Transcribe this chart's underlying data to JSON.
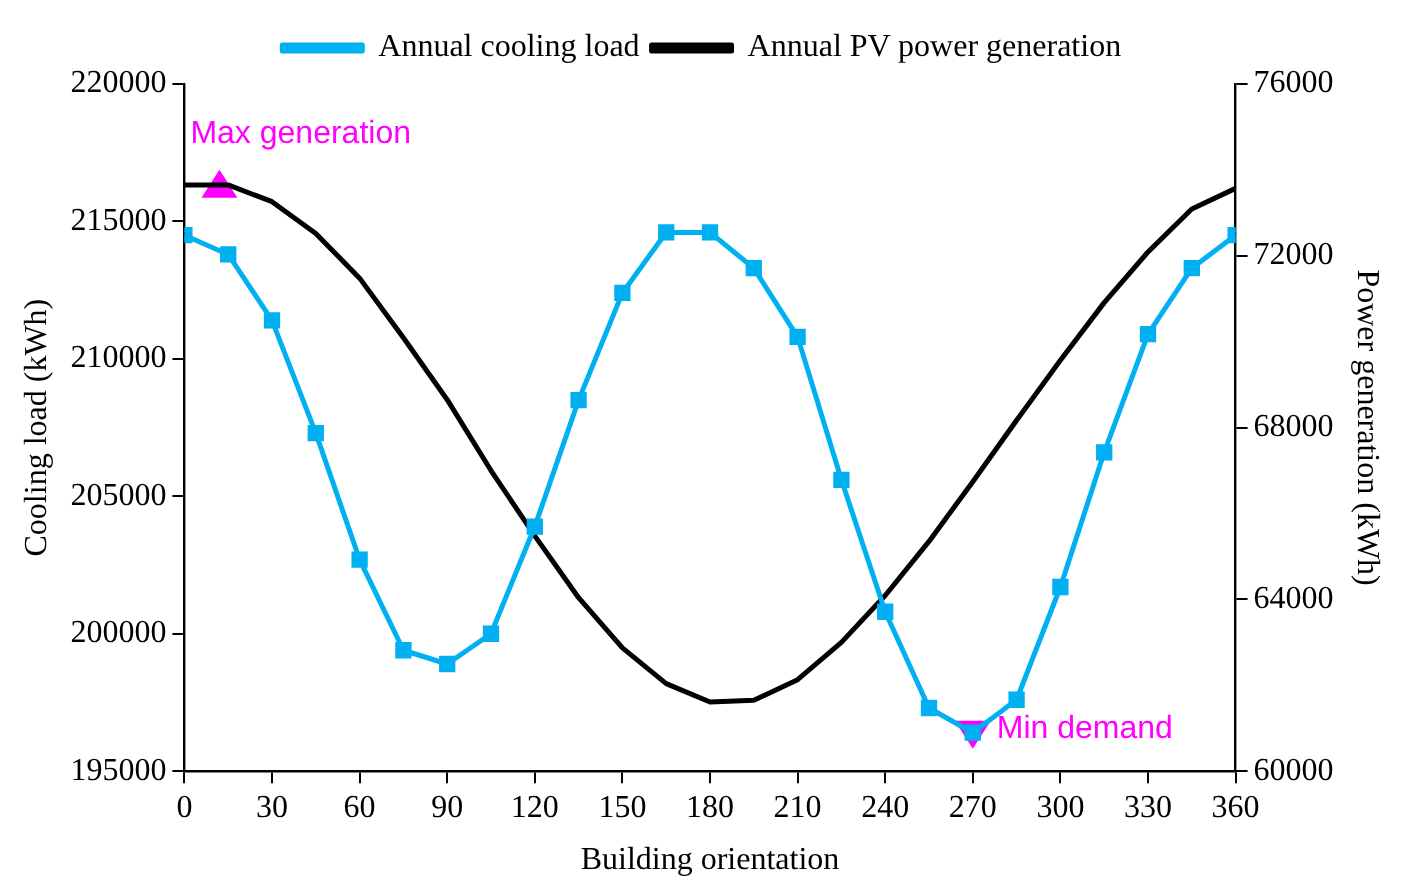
{
  "chart_data": {
    "type": "line",
    "xlabel": "Building orientation",
    "ylabel": "Cooling load (kWh)",
    "y2label": "Power generation (kWh)",
    "x": [
      0,
      15,
      30,
      45,
      60,
      75,
      90,
      105,
      120,
      135,
      150,
      165,
      180,
      195,
      210,
      225,
      240,
      255,
      270,
      285,
      300,
      315,
      330,
      345,
      360
    ],
    "series": [
      {
        "name": "Annual cooling load",
        "color": "#00b0f0",
        "marker": "square",
        "values": [
          214500,
          213800,
          211400,
          207300,
          202700,
          199400,
          198900,
          200000,
          203900,
          208500,
          212400,
          214600,
          214600,
          213300,
          210800,
          205600,
          200800,
          197300,
          196400,
          197600,
          201700,
          206600,
          210900,
          213300,
          214500
        ]
      },
      {
        "name": "Annual PV power generation",
        "color": "#000000",
        "marker": "none",
        "axis": "y2",
        "values": [
          73650,
          73650,
          73260,
          72520,
          71480,
          70090,
          68650,
          67000,
          65480,
          64040,
          62870,
          62040,
          61610,
          61650,
          62130,
          63000,
          64090,
          65350,
          66740,
          68170,
          69570,
          70910,
          72090,
          73090,
          73570
        ]
      }
    ],
    "xlim": [
      0,
      360
    ],
    "xticks": [
      0,
      30,
      60,
      90,
      120,
      150,
      180,
      210,
      240,
      270,
      300,
      330,
      360
    ],
    "ylim": [
      195000,
      220000
    ],
    "yticks": [
      195000,
      200000,
      205000,
      210000,
      215000,
      220000
    ],
    "y2lim": [
      60000,
      76000
    ],
    "y2ticks": [
      60000,
      64000,
      68000,
      72000,
      76000
    ],
    "annotations": [
      {
        "text": "Max generation",
        "x": 12,
        "y": 216300
      },
      {
        "text": "Min demand",
        "x": 270,
        "y": 196400
      }
    ],
    "grid": false,
    "legend": "top"
  }
}
